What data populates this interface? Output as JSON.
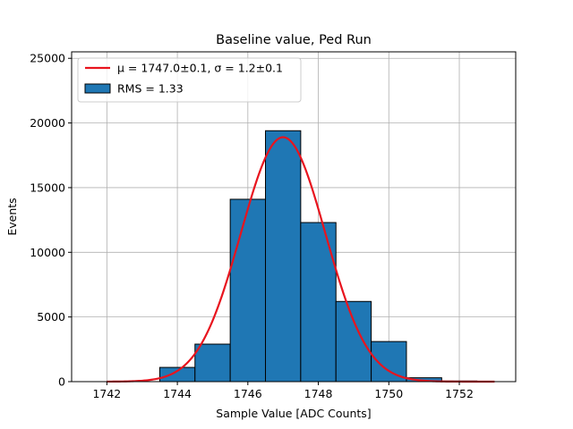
{
  "chart_data": {
    "type": "bar",
    "title": "Baseline value, Ped Run",
    "xlabel": "Sample Value [ADC Counts]",
    "ylabel": "Events",
    "xlim": [
      1741.0,
      1753.6
    ],
    "ylim": [
      0,
      25500
    ],
    "xticks": [
      1742,
      1744,
      1746,
      1748,
      1750,
      1752
    ],
    "yticks": [
      0,
      5000,
      10000,
      15000,
      20000,
      25000
    ],
    "grid": true,
    "legend_position": "top-left",
    "bins": [
      {
        "x0": 1742.5,
        "x1": 1743.5,
        "value": 0
      },
      {
        "x0": 1743.5,
        "x1": 1744.5,
        "value": 1100
      },
      {
        "x0": 1744.5,
        "x1": 1745.5,
        "value": 2900
      },
      {
        "x0": 1745.5,
        "x1": 1746.5,
        "value": 14100
      },
      {
        "x0": 1746.5,
        "x1": 1747.5,
        "value": 19400
      },
      {
        "x0": 1747.5,
        "x1": 1748.5,
        "value": 12300
      },
      {
        "x0": 1748.5,
        "x1": 1749.5,
        "value": 6200
      },
      {
        "x0": 1749.5,
        "x1": 1750.5,
        "value": 3100
      },
      {
        "x0": 1750.5,
        "x1": 1751.5,
        "value": 300
      },
      {
        "x0": 1751.5,
        "x1": 1752.5,
        "value": 50
      }
    ],
    "histogram_series": {
      "label": "RMS = 1.33",
      "color": "#1f77b4",
      "edge_color": "#000000"
    },
    "fit": {
      "label": "μ = 1747.0±0.1, σ = 1.2±0.1",
      "function": "gaussian",
      "mean": 1747.0,
      "sigma": 1.2,
      "amplitude": 18900,
      "x_range": [
        1742.0,
        1753.0
      ],
      "color": "#e8141e"
    },
    "colors": {
      "grid": "#b0b0b0",
      "axes": "#000000"
    }
  }
}
